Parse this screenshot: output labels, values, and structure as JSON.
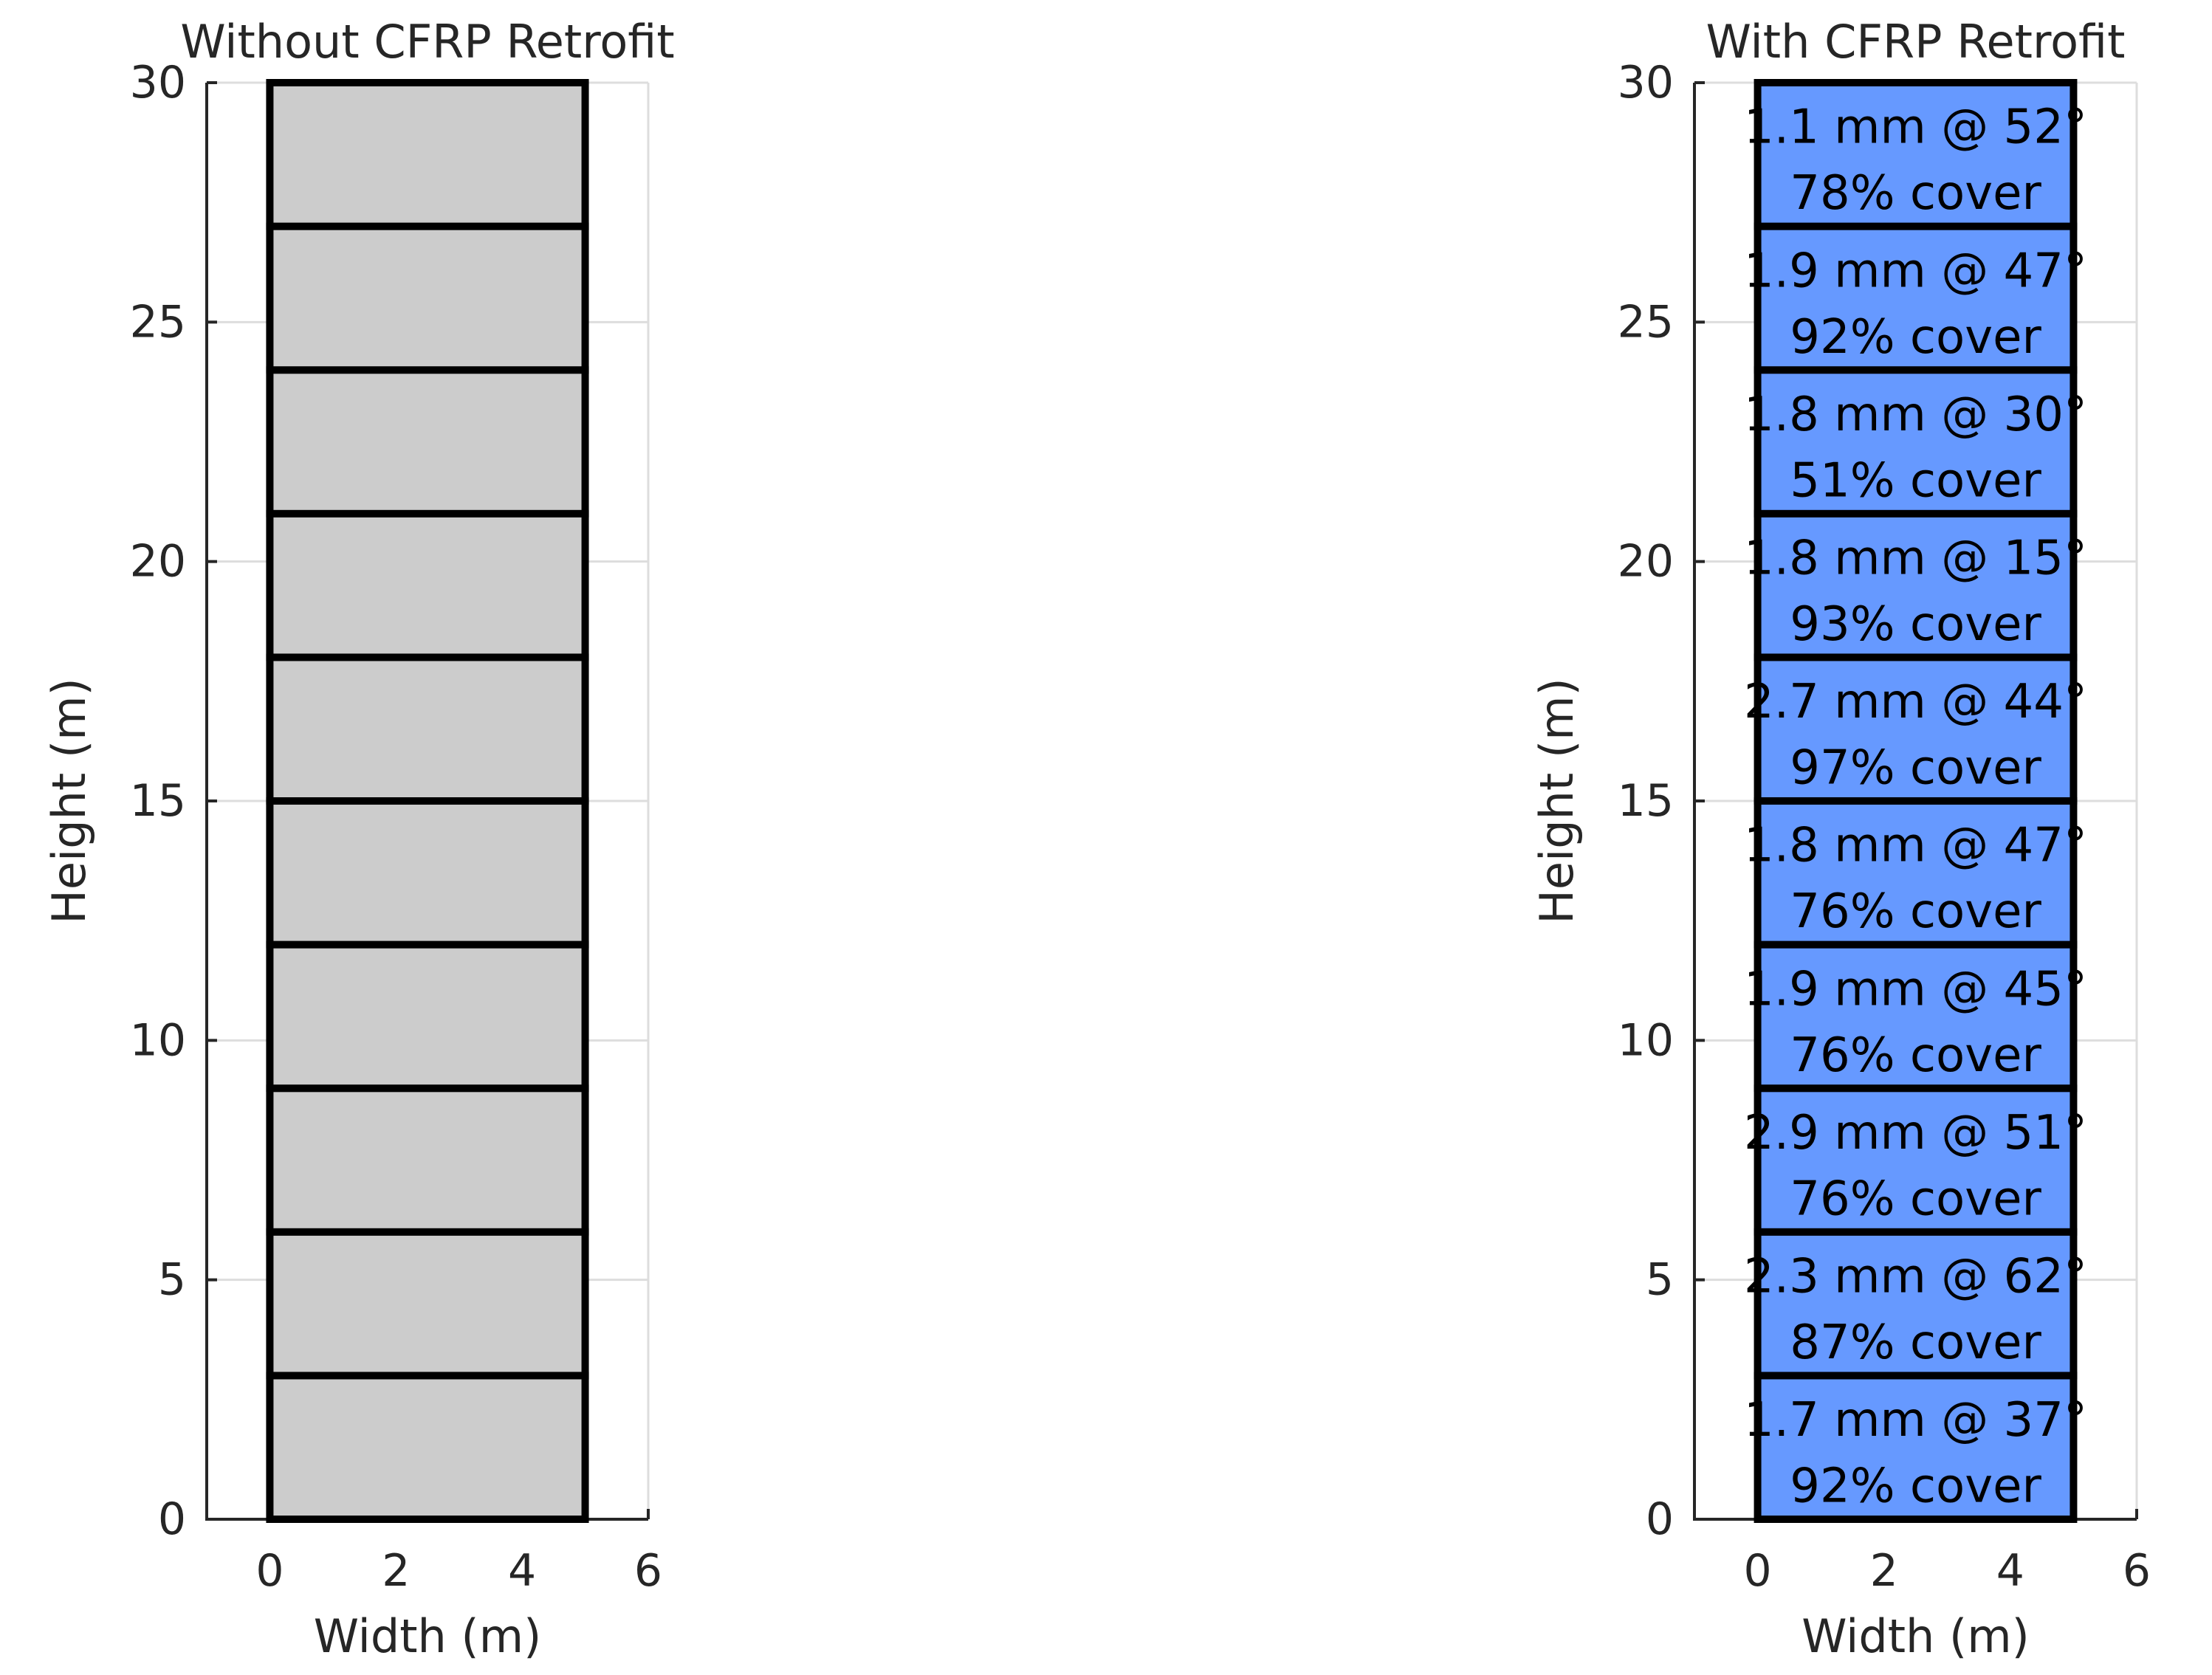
{
  "chart_data": [
    {
      "type": "bar",
      "title": "Without CFRP Retrofit",
      "xlabel": "Width (m)",
      "ylabel": "Height (m)",
      "xlim": [
        -1,
        6
      ],
      "ylim": [
        0,
        30
      ],
      "xticks": [
        0,
        2,
        4,
        6
      ],
      "yticks": [
        0,
        5,
        10,
        15,
        20,
        25,
        30
      ],
      "grid": true,
      "fill_color": "#cccccc",
      "segments": [
        {
          "x0": 0,
          "x1": 5,
          "y0": 0,
          "y1": 3
        },
        {
          "x0": 0,
          "x1": 5,
          "y0": 3,
          "y1": 6
        },
        {
          "x0": 0,
          "x1": 5,
          "y0": 6,
          "y1": 9
        },
        {
          "x0": 0,
          "x1": 5,
          "y0": 9,
          "y1": 12
        },
        {
          "x0": 0,
          "x1": 5,
          "y0": 12,
          "y1": 15
        },
        {
          "x0": 0,
          "x1": 5,
          "y0": 15,
          "y1": 18
        },
        {
          "x0": 0,
          "x1": 5,
          "y0": 18,
          "y1": 21
        },
        {
          "x0": 0,
          "x1": 5,
          "y0": 21,
          "y1": 24
        },
        {
          "x0": 0,
          "x1": 5,
          "y0": 24,
          "y1": 27
        },
        {
          "x0": 0,
          "x1": 5,
          "y0": 27,
          "y1": 30
        }
      ]
    },
    {
      "type": "bar",
      "title": "With CFRP Retrofit",
      "xlabel": "Width (m)",
      "ylabel": "Height (m)",
      "xlim": [
        -1,
        6
      ],
      "ylim": [
        0,
        30
      ],
      "xticks": [
        0,
        2,
        4,
        6
      ],
      "yticks": [
        0,
        5,
        10,
        15,
        20,
        25,
        30
      ],
      "grid": true,
      "fill_color": "#6699ff",
      "segments": [
        {
          "x0": 0,
          "x1": 5,
          "y0": 0,
          "y1": 3,
          "line1": "1.7 mm @ 37°",
          "line2": "92% cover"
        },
        {
          "x0": 0,
          "x1": 5,
          "y0": 3,
          "y1": 6,
          "line1": "2.3 mm @ 62°",
          "line2": "87% cover"
        },
        {
          "x0": 0,
          "x1": 5,
          "y0": 6,
          "y1": 9,
          "line1": "2.9 mm @ 51°",
          "line2": "76% cover"
        },
        {
          "x0": 0,
          "x1": 5,
          "y0": 9,
          "y1": 12,
          "line1": "1.9 mm @ 45°",
          "line2": "76% cover"
        },
        {
          "x0": 0,
          "x1": 5,
          "y0": 12,
          "y1": 15,
          "line1": "1.8 mm @ 47°",
          "line2": "76% cover"
        },
        {
          "x0": 0,
          "x1": 5,
          "y0": 15,
          "y1": 18,
          "line1": "2.7 mm @ 44°",
          "line2": "97% cover"
        },
        {
          "x0": 0,
          "x1": 5,
          "y0": 18,
          "y1": 21,
          "line1": "1.8 mm @ 15°",
          "line2": "93% cover"
        },
        {
          "x0": 0,
          "x1": 5,
          "y0": 21,
          "y1": 24,
          "line1": "1.8 mm @ 30°",
          "line2": "51% cover"
        },
        {
          "x0": 0,
          "x1": 5,
          "y0": 24,
          "y1": 27,
          "line1": "1.9 mm @ 47°",
          "line2": "92% cover"
        },
        {
          "x0": 0,
          "x1": 5,
          "y0": 27,
          "y1": 30,
          "line1": "1.1 mm @ 52°",
          "line2": "78% cover"
        }
      ]
    }
  ]
}
